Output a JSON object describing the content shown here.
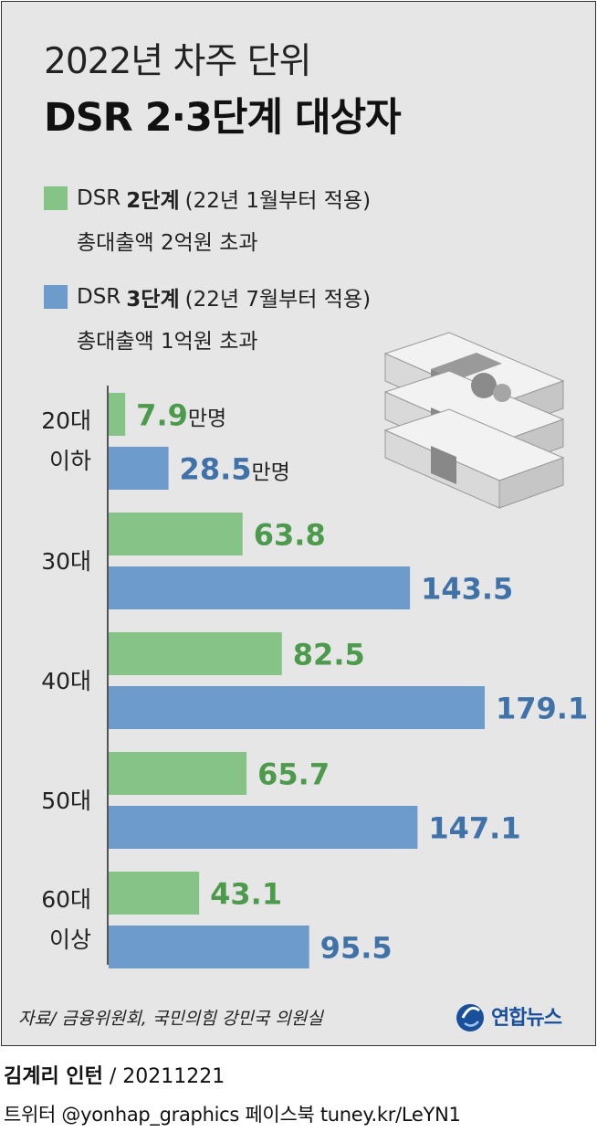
{
  "title": {
    "line1": "2022년 차주 단위",
    "line2": "DSR 2·3단계 대상자"
  },
  "legend": [
    {
      "prefix": "DSR",
      "stage": "2단계",
      "period": "(22년 1월부터 적용)",
      "condition": "총대출액 2억원 초과",
      "color": "#86c386"
    },
    {
      "prefix": "DSR",
      "stage": "3단계",
      "period": "(22년 7월부터 적용)",
      "condition": "총대출액 1억원 초과",
      "color": "#6d9bcb"
    }
  ],
  "chart_data": {
    "type": "bar",
    "orientation": "horizontal",
    "categories": [
      {
        "line1": "20대",
        "line2": "이하"
      },
      {
        "line1": "30대",
        "line2": ""
      },
      {
        "line1": "40대",
        "line2": ""
      },
      {
        "line1": "50대",
        "line2": ""
      },
      {
        "line1": "60대",
        "line2": "이상"
      }
    ],
    "series": [
      {
        "name": "DSR 2단계",
        "color": "#86c386",
        "label_color": "#4c9a4c",
        "values": [
          7.9,
          63.8,
          82.5,
          65.7,
          43.1
        ],
        "labels": [
          "7.9",
          "63.8",
          "82.5",
          "65.7",
          "43.1"
        ]
      },
      {
        "name": "DSR 3단계",
        "color": "#6d9bcb",
        "label_color": "#3f72a9",
        "values": [
          28.5,
          143.5,
          179.1,
          147.1,
          95.5
        ],
        "labels": [
          "28.5",
          "143.5",
          "179.1",
          "147.1",
          "95.5"
        ]
      }
    ],
    "unit_suffix": "만명",
    "xlim": [
      0,
      200
    ]
  },
  "source": "자료/ 금융위원회, 국민의힘 강민국 의원실",
  "logo": {
    "text": "연합뉴스"
  },
  "credit": {
    "author": "김계리 인턴",
    "date": "/ 20211221",
    "social": "트위터 @yonhap_graphics  페이스북 tuney.kr/LeYN1"
  }
}
